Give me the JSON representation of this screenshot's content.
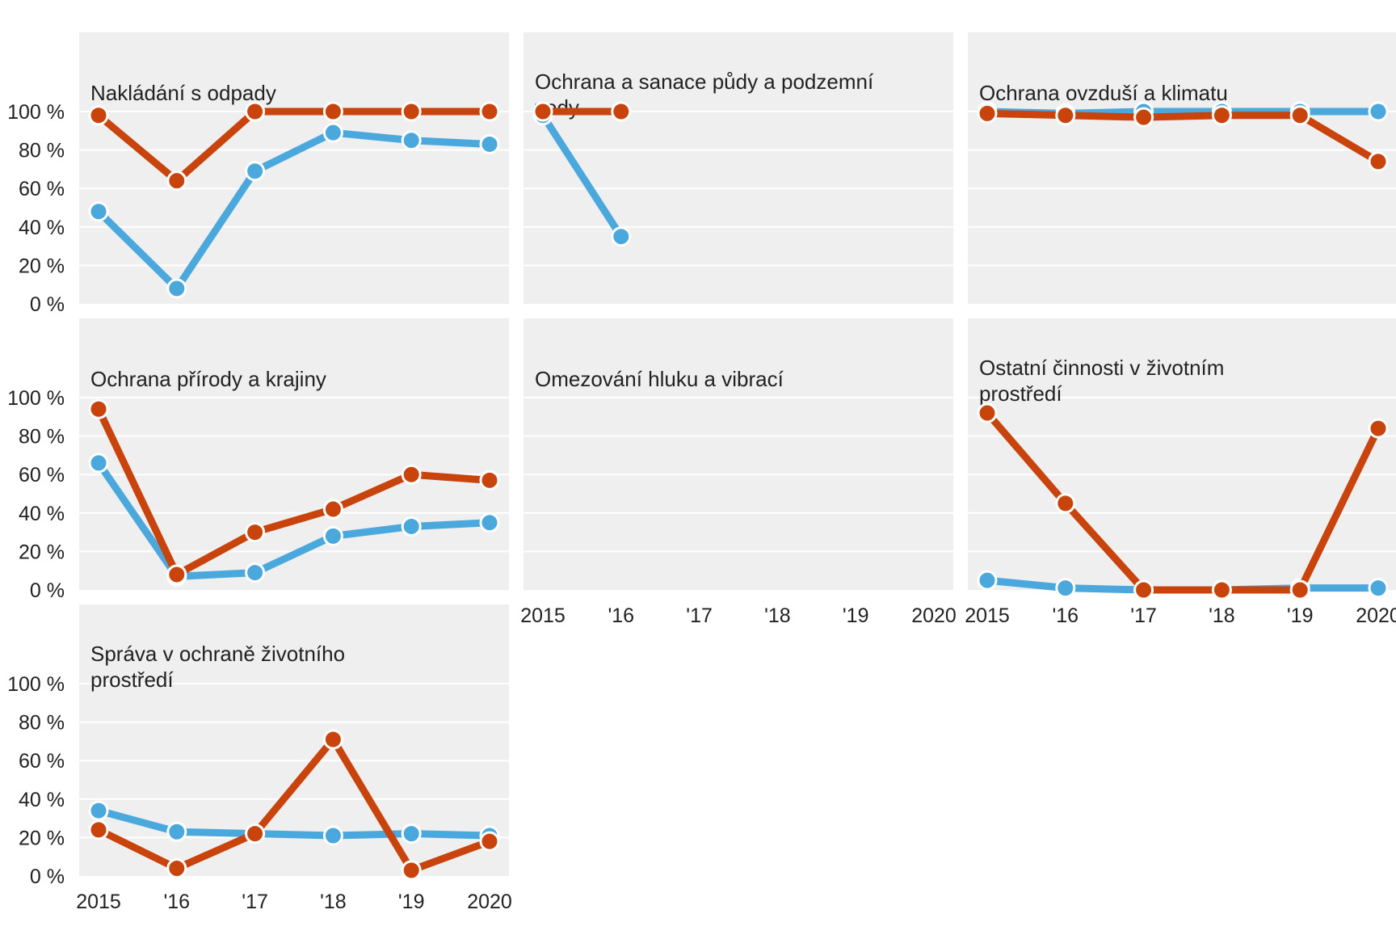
{
  "chart_data": {
    "type": "line",
    "layout": "small-multiples",
    "x": [
      2015,
      2016,
      2017,
      2018,
      2019,
      2020
    ],
    "x_tick_labels": [
      "2015",
      "'16",
      "'17",
      "'18",
      "'19",
      "2020"
    ],
    "y_tick_labels": [
      "0 %",
      "20 %",
      "40 %",
      "60 %",
      "80 %",
      "100 %"
    ],
    "ylim": [
      0,
      100
    ],
    "y_ticks": [
      0,
      20,
      40,
      60,
      80,
      100
    ],
    "grid": true,
    "colors": {
      "blue": "#4aa8dc",
      "orange": "#c8440c",
      "panel_bg": "#efefef",
      "grid": "#ffffff"
    },
    "panels": [
      {
        "title_lines": [
          "Nakládání s odpady"
        ],
        "series": [
          {
            "color": "#4aa8dc",
            "values": [
              48,
              8,
              69,
              89,
              85,
              83
            ]
          },
          {
            "color": "#c8440c",
            "values": [
              98,
              64,
              100,
              100,
              100,
              100
            ]
          }
        ]
      },
      {
        "title_lines": [
          "Ochrana a sanace půdy a podzemní",
          "vody"
        ],
        "series": [
          {
            "color": "#4aa8dc",
            "values": [
              98,
              35,
              null,
              null,
              null,
              null
            ]
          },
          {
            "color": "#c8440c",
            "values": [
              100,
              100,
              null,
              null,
              null,
              null
            ]
          }
        ]
      },
      {
        "title_lines": [
          "Ochrana ovzduší a klimatu"
        ],
        "series": [
          {
            "color": "#4aa8dc",
            "values": [
              100,
              99,
              100,
              100,
              100,
              100
            ]
          },
          {
            "color": "#c8440c",
            "values": [
              99,
              98,
              97,
              98,
              98,
              74
            ]
          }
        ]
      },
      {
        "title_lines": [
          "Ochrana přírody a krajiny"
        ],
        "series": [
          {
            "color": "#4aa8dc",
            "values": [
              66,
              7,
              9,
              28,
              33,
              35
            ]
          },
          {
            "color": "#c8440c",
            "values": [
              94,
              8,
              30,
              42,
              60,
              57
            ]
          }
        ]
      },
      {
        "title_lines": [
          "Omezování hluku a vibrací"
        ],
        "series": []
      },
      {
        "title_lines": [
          "Ostatní činnosti v životním",
          "prostředí"
        ],
        "series": [
          {
            "color": "#4aa8dc",
            "values": [
              5,
              1,
              0,
              0,
              1,
              1
            ]
          },
          {
            "color": "#c8440c",
            "values": [
              92,
              45,
              0,
              0,
              0,
              84
            ]
          }
        ]
      },
      {
        "title_lines": [
          "Správa v ochraně životního",
          "prostředí"
        ],
        "series": [
          {
            "color": "#4aa8dc",
            "values": [
              34,
              23,
              22,
              21,
              22,
              21
            ]
          },
          {
            "color": "#c8440c",
            "values": [
              24,
              4,
              22,
              71,
              3,
              18
            ]
          }
        ]
      }
    ]
  }
}
